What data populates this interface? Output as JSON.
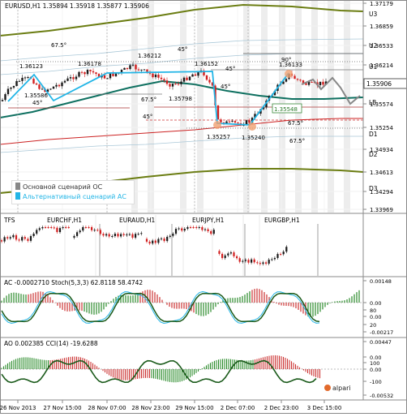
{
  "main": {
    "symbol_line": "EURUSD,H1  1.35894 1.35918 1.35877 1.35906",
    "price_axis": [
      "1.37179",
      "1.36859",
      "1.36533",
      "1.36214",
      "1.35906",
      "1.35574",
      "1.35254",
      "1.34934",
      "1.34613",
      "1.34294",
      "1.33969"
    ],
    "current_price": "1.35906",
    "level_labels": [
      "U3",
      "U2",
      "U1",
      "LB",
      "D1",
      "D2",
      "D3"
    ],
    "annotations": {
      "peaks": [
        "1.36123",
        "1.36178",
        "1.36212",
        "1.36152",
        "1.36133"
      ],
      "troughs": [
        "1.35586",
        "1.35798",
        "1.35257",
        "1.35240"
      ],
      "boxed_value": "1.35548",
      "angles": [
        "67.5°",
        "45°",
        "45°",
        "45°",
        "67.5°",
        "45°",
        "45°",
        "67.5°",
        "67.5°",
        "90°"
      ]
    },
    "legend": {
      "base": "Основной сценарий ОС",
      "alt": "Альтернативный сценарий АС"
    }
  },
  "tfs_panel": {
    "label": "TFS",
    "pairs": [
      "EURCHF,H1",
      "EURAUD,H1",
      "EURJPY,H1",
      "EURGBP,H1"
    ]
  },
  "ac_panel": {
    "label": "AC -0.0002710  Stoch(5,3,3) 62.8118 58.4742",
    "axis": [
      "0.00148",
      "0.00",
      "80",
      "0.00",
      "20",
      "-0.00217"
    ]
  },
  "ao_panel": {
    "label": "AO 0.002385  CCI(14) -19.6288",
    "axis": [
      "0.00447",
      "0.00",
      "100",
      "0.00",
      "-100",
      "-0.00532"
    ]
  },
  "time_axis": [
    "26 Nov 2013",
    "27 Nov 15:00",
    "28 Nov 07:00",
    "28 Nov 23:00",
    "29 Nov 15:00",
    "2 Dec 07:00",
    "2 Dec 23:00",
    "3 Dec 15:00"
  ],
  "brand": "alpari",
  "colors": {
    "bull": "#1a1a1a",
    "bear": "#d21e1e",
    "teal": "#0e7060",
    "olive": "#6b7d12",
    "cyan": "#22b5e6",
    "stripe": "#ededed"
  }
}
